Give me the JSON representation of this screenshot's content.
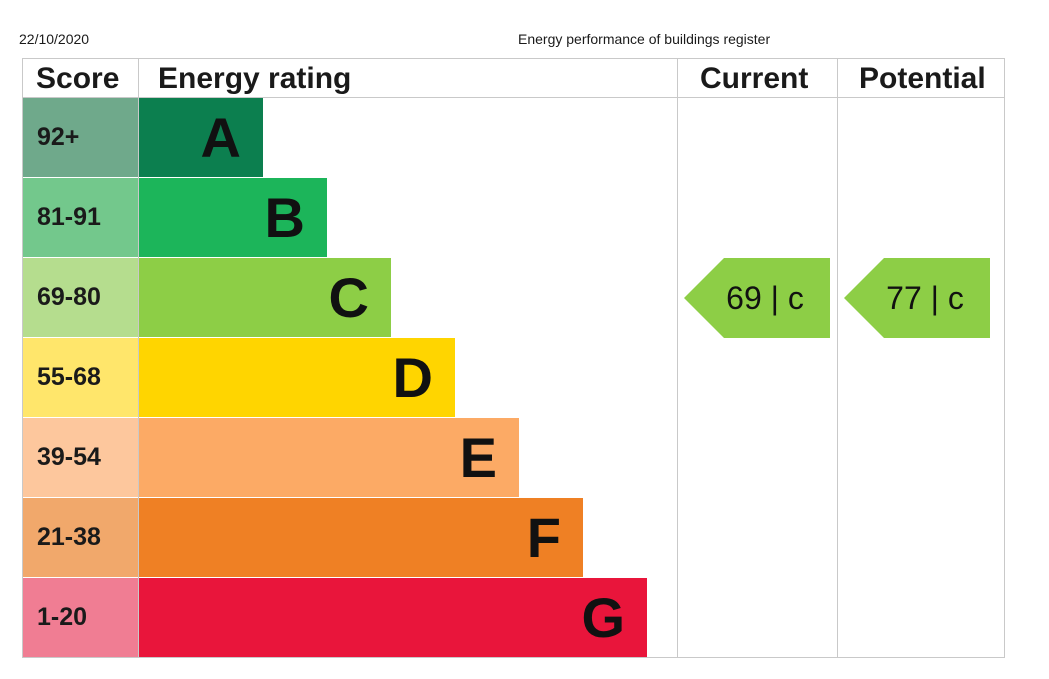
{
  "header": {
    "date": "22/10/2020",
    "register_title": "Energy performance of buildings register"
  },
  "columns": {
    "score": "Score",
    "rating": "Energy rating",
    "current": "Current",
    "potential": "Potential"
  },
  "chart_data": {
    "type": "bar",
    "categories": [
      "A",
      "B",
      "C",
      "D",
      "E",
      "F",
      "G"
    ],
    "score_ranges": [
      "92+",
      "81-91",
      "69-80",
      "55-68",
      "39-54",
      "21-38",
      "1-20"
    ],
    "band_colors": [
      "#0c7f4f",
      "#1cb55a",
      "#8dce46",
      "#ffd500",
      "#fcaa65",
      "#ef8024",
      "#e9153b"
    ],
    "score_cell_colors": [
      "#6fa98b",
      "#73c88c",
      "#b5dd8e",
      "#ffe66b",
      "#fdc79d",
      "#f1a86b",
      "#f07d93"
    ],
    "current": {
      "score": "69",
      "rating": "c",
      "band": "C",
      "label": "69 |  c",
      "color": "#8dce46"
    },
    "potential": {
      "score": "77",
      "rating": "c",
      "band": "C",
      "label": "77 |  c",
      "color": "#8dce46"
    }
  }
}
